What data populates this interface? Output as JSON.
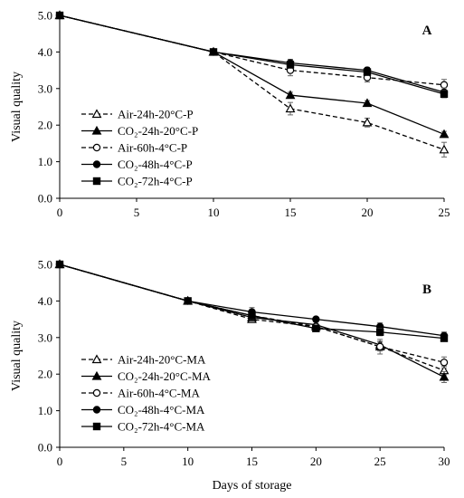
{
  "chart_data": [
    {
      "type": "line",
      "panel_label": "A",
      "ylabel": "Visual quality",
      "xlabel": "",
      "xlim": [
        0,
        25
      ],
      "ylim": [
        0,
        5
      ],
      "xticks": [
        "0",
        "5",
        "10",
        "15",
        "20",
        "25"
      ],
      "yticks": [
        "0.0",
        "1.0",
        "2.0",
        "3.0",
        "4.0",
        "5.0"
      ],
      "xtick_values": [
        0,
        5,
        10,
        15,
        20,
        25
      ],
      "ytick_values": [
        0,
        1,
        2,
        3,
        4,
        5
      ],
      "grid": false,
      "legend_position": "bottom-left",
      "series": [
        {
          "name": "Air-24h-20°C-P",
          "marker": "open-triangle",
          "dash": "dashed",
          "x": [
            0,
            10,
            15,
            20,
            25
          ],
          "y": [
            5.0,
            4.0,
            2.45,
            2.07,
            1.33
          ],
          "err": [
            0,
            0,
            0.17,
            0.12,
            0.2
          ]
        },
        {
          "name": "CO₂-24h-20°C-P",
          "marker": "filled-triangle",
          "dash": "solid",
          "x": [
            0,
            10,
            15,
            20,
            25
          ],
          "y": [
            5.0,
            4.0,
            2.82,
            2.6,
            1.75
          ],
          "err": [
            0,
            0,
            0.08,
            0.07,
            0.08
          ]
        },
        {
          "name": "Air-60h-4°C-P",
          "marker": "open-circle",
          "dash": "dashed",
          "x": [
            0,
            10,
            15,
            20,
            25
          ],
          "y": [
            5.0,
            4.0,
            3.5,
            3.3,
            3.1
          ],
          "err": [
            0,
            0,
            0.15,
            0.12,
            0.15
          ]
        },
        {
          "name": "CO₂-48h-4°C-P",
          "marker": "filled-circle",
          "dash": "solid",
          "x": [
            0,
            10,
            15,
            20,
            25
          ],
          "y": [
            5.0,
            4.0,
            3.7,
            3.5,
            2.9
          ],
          "err": [
            0,
            0,
            0.1,
            0.08,
            0.12
          ]
        },
        {
          "name": "CO₂-72h-4°C-P",
          "marker": "filled-square",
          "dash": "solid",
          "x": [
            0,
            10,
            15,
            20,
            25
          ],
          "y": [
            5.0,
            4.0,
            3.65,
            3.45,
            2.85
          ],
          "err": [
            0,
            0,
            0.08,
            0.08,
            0.1
          ]
        }
      ]
    },
    {
      "type": "line",
      "panel_label": "B",
      "ylabel": "Visual quality",
      "xlabel": "Days of storage",
      "xlim": [
        0,
        30
      ],
      "ylim": [
        0,
        5
      ],
      "xticks": [
        "0",
        "5",
        "10",
        "15",
        "20",
        "25",
        "30"
      ],
      "yticks": [
        "0.0",
        "1.0",
        "2.0",
        "3.0",
        "4.0",
        "5.0"
      ],
      "xtick_values": [
        0,
        5,
        10,
        15,
        20,
        25,
        30
      ],
      "ytick_values": [
        0,
        1,
        2,
        3,
        4,
        5
      ],
      "grid": false,
      "legend_position": "bottom-left",
      "series": [
        {
          "name": "Air-24h-20°C-MA",
          "marker": "open-triangle",
          "dash": "dashed",
          "x": [
            0,
            10,
            15,
            20,
            25,
            30
          ],
          "y": [
            5.0,
            4.0,
            3.5,
            3.3,
            2.75,
            2.1
          ],
          "err": [
            0,
            0,
            0.08,
            0.08,
            0.12,
            0.12
          ]
        },
        {
          "name": "CO₂-24h-20°C-MA",
          "marker": "filled-triangle",
          "dash": "solid",
          "x": [
            0,
            10,
            15,
            20,
            25,
            30
          ],
          "y": [
            5.0,
            4.0,
            3.55,
            3.35,
            2.8,
            1.92
          ],
          "err": [
            0,
            0,
            0.08,
            0.08,
            0.1,
            0.15
          ]
        },
        {
          "name": "Air-60h-4°C-MA",
          "marker": "open-circle",
          "dash": "dashed",
          "x": [
            0,
            10,
            15,
            20,
            25,
            30
          ],
          "y": [
            5.0,
            4.0,
            3.6,
            3.3,
            2.75,
            2.32
          ],
          "err": [
            0,
            0,
            0.1,
            0.08,
            0.2,
            0.15
          ]
        },
        {
          "name": "CO₂-48h-4°C-MA",
          "marker": "filled-circle",
          "dash": "solid",
          "x": [
            0,
            10,
            15,
            20,
            25,
            30
          ],
          "y": [
            5.0,
            4.0,
            3.7,
            3.5,
            3.3,
            3.05
          ],
          "err": [
            0,
            0,
            0.12,
            0.06,
            0.1,
            0.1
          ]
        },
        {
          "name": "CO₂-72h-4°C-MA",
          "marker": "filled-square",
          "dash": "solid",
          "x": [
            0,
            10,
            15,
            20,
            25,
            30
          ],
          "y": [
            5.0,
            4.0,
            3.6,
            3.25,
            3.15,
            2.98
          ],
          "err": [
            0,
            0,
            0.08,
            0.06,
            0.1,
            0.08
          ]
        }
      ]
    }
  ]
}
